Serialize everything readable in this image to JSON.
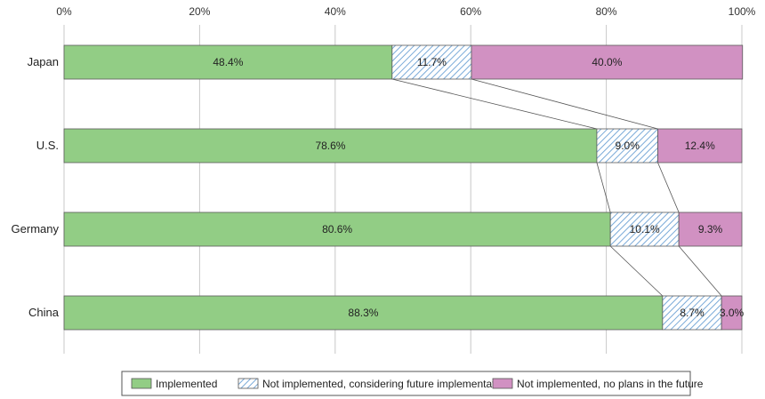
{
  "chart_data": {
    "type": "bar",
    "orientation": "horizontal",
    "stacked": true,
    "percent": true,
    "title": "",
    "xlabel": "",
    "ylabel": "",
    "xlim": [
      0,
      100
    ],
    "x_ticks": [
      "0%",
      "20%",
      "40%",
      "60%",
      "80%",
      "100%"
    ],
    "grid": true,
    "legend_position": "bottom",
    "series_connectors": true,
    "categories": [
      "Japan",
      "U.S.",
      "Germany",
      "China"
    ],
    "series": [
      {
        "name": "Implemented",
        "values": [
          48.4,
          78.6,
          80.6,
          88.3
        ],
        "labels": [
          "48.4%",
          "78.6%",
          "80.6%",
          "88.3%"
        ],
        "color": "#92cd85",
        "pattern": "solid"
      },
      {
        "name": "Not implemented, considering future implementation",
        "values": [
          11.7,
          9.0,
          10.1,
          8.7
        ],
        "labels": [
          "11.7%",
          "9.0%",
          "10.1%",
          "8.7%"
        ],
        "color": "#8fb7e0",
        "pattern": "diagonal-hatch"
      },
      {
        "name": "Not implemented, no plans in the future",
        "values": [
          40.0,
          12.4,
          9.3,
          3.0
        ],
        "labels": [
          "40.0%",
          "12.4%",
          "9.3%",
          "3.0%"
        ],
        "color": "#d191c2",
        "pattern": "solid"
      }
    ]
  }
}
